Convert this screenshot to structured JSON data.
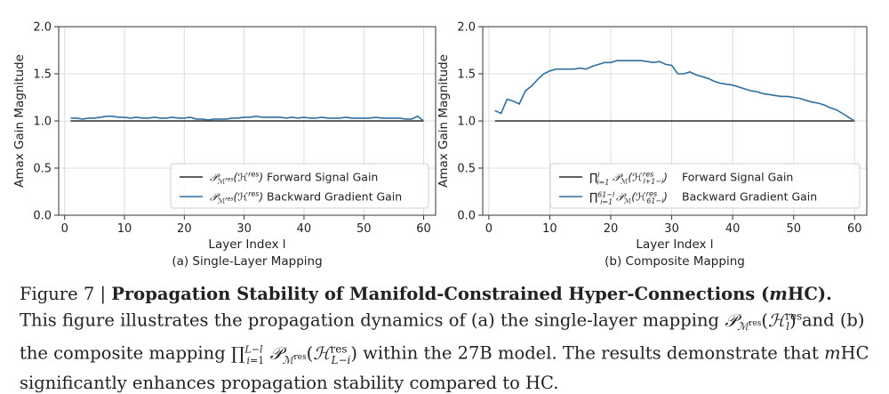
{
  "chart_data": [
    {
      "type": "line",
      "subtitle": "(a) Single-Layer Mapping",
      "xlabel": "Layer Index l",
      "ylabel": "Amax Gain Magnitude",
      "xlim": [
        -1,
        62
      ],
      "ylim": [
        0,
        2
      ],
      "xticks": [
        "0",
        "10",
        "20",
        "30",
        "40",
        "50",
        "60"
      ],
      "yticks": [
        "0.0",
        "0.5",
        "1.0",
        "1.5",
        "2.0"
      ],
      "grid": true,
      "legend_position": "lower-right",
      "series": [
        {
          "name": "𝒫ℳres(ℋlres) Forward Signal Gain",
          "color": "#2b2b2b",
          "x": [
            1,
            60
          ],
          "y": [
            1.0,
            1.0
          ]
        },
        {
          "name": "𝒫ℳres(ℋlres) Backward Gradient Gain",
          "color": "#2f6f9f",
          "x": [
            1,
            2,
            3,
            4,
            5,
            6,
            7,
            8,
            9,
            10,
            11,
            12,
            13,
            14,
            15,
            16,
            17,
            18,
            19,
            20,
            21,
            22,
            23,
            24,
            25,
            26,
            27,
            28,
            29,
            30,
            31,
            32,
            33,
            34,
            35,
            36,
            37,
            38,
            39,
            40,
            41,
            42,
            43,
            44,
            45,
            46,
            47,
            48,
            49,
            50,
            51,
            52,
            53,
            54,
            55,
            56,
            57,
            58,
            59,
            60
          ],
          "y": [
            1.03,
            1.03,
            1.02,
            1.03,
            1.03,
            1.04,
            1.05,
            1.05,
            1.04,
            1.04,
            1.03,
            1.04,
            1.03,
            1.03,
            1.04,
            1.03,
            1.03,
            1.04,
            1.03,
            1.03,
            1.04,
            1.02,
            1.02,
            1.01,
            1.02,
            1.02,
            1.02,
            1.03,
            1.03,
            1.04,
            1.04,
            1.05,
            1.04,
            1.04,
            1.04,
            1.04,
            1.03,
            1.04,
            1.03,
            1.04,
            1.03,
            1.03,
            1.04,
            1.03,
            1.03,
            1.03,
            1.04,
            1.03,
            1.03,
            1.03,
            1.03,
            1.04,
            1.03,
            1.03,
            1.03,
            1.03,
            1.02,
            1.02,
            1.05,
            1.0
          ]
        }
      ]
    },
    {
      "type": "line",
      "subtitle": "(b) Composite Mapping",
      "xlabel": "Layer Index l",
      "ylabel": "Amax Gain Magnitude",
      "xlim": [
        -1,
        62
      ],
      "ylim": [
        0,
        2
      ],
      "xticks": [
        "0",
        "10",
        "20",
        "30",
        "40",
        "50",
        "60"
      ],
      "yticks": [
        "0.0",
        "0.5",
        "1.0",
        "1.5",
        "2.0"
      ],
      "grid": true,
      "legend_position": "lower-right",
      "series": [
        {
          "name": "∏ i=1..l 𝒫ℳres(ℋl+1−i res) Forward Signal Gain",
          "color": "#2b2b2b",
          "x": [
            1,
            60
          ],
          "y": [
            1.0,
            1.0
          ]
        },
        {
          "name": "∏ i=1..61−l 𝒫ℳres(ℋ61−i res) Backward Gradient Gain",
          "color": "#2f6f9f",
          "x": [
            1,
            2,
            3,
            4,
            5,
            6,
            7,
            8,
            9,
            10,
            11,
            12,
            13,
            14,
            15,
            16,
            17,
            18,
            19,
            20,
            21,
            22,
            23,
            24,
            25,
            26,
            27,
            28,
            29,
            30,
            31,
            32,
            33,
            34,
            35,
            36,
            37,
            38,
            39,
            40,
            41,
            42,
            43,
            44,
            45,
            46,
            47,
            48,
            49,
            50,
            51,
            52,
            53,
            54,
            55,
            56,
            57,
            58,
            59,
            60
          ],
          "y": [
            1.11,
            1.08,
            1.23,
            1.21,
            1.18,
            1.32,
            1.37,
            1.44,
            1.5,
            1.53,
            1.55,
            1.55,
            1.55,
            1.55,
            1.56,
            1.55,
            1.58,
            1.6,
            1.62,
            1.62,
            1.64,
            1.64,
            1.64,
            1.64,
            1.64,
            1.63,
            1.62,
            1.63,
            1.6,
            1.59,
            1.5,
            1.5,
            1.52,
            1.49,
            1.47,
            1.45,
            1.42,
            1.4,
            1.39,
            1.38,
            1.36,
            1.34,
            1.32,
            1.31,
            1.29,
            1.28,
            1.27,
            1.26,
            1.26,
            1.25,
            1.24,
            1.22,
            1.2,
            1.19,
            1.17,
            1.14,
            1.12,
            1.08,
            1.04,
            1.0
          ]
        }
      ]
    }
  ],
  "legend": {
    "a_forward_text": "Forward Signal Gain",
    "a_backward_text": "Backward Gradient Gain",
    "b_forward_text": "Forward Signal Gain",
    "b_backward_text": "Backward Gradient Gain"
  },
  "caption": {
    "fig_label": "Figure 7 |",
    "bold_title": "Propagation Stability of Manifold-Constrained Hyper-Connections (",
    "bold_title_m": "m",
    "bold_title_end": "HC).",
    "text1": "This figure illustrates the propagation dynamics of (a) the single-layer mapping",
    "text2": "and (b) the composite mapping",
    "text3": "within the 27B model. The results demonstrate that",
    "text4_m": "m",
    "text4": "HC significantly enhances propagation stability compared to HC."
  }
}
